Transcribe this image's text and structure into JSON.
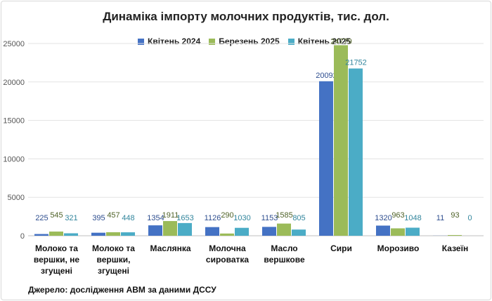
{
  "chart_data": {
    "type": "bar",
    "title": "Динаміка імпорту молочних продуктів, тис. дол.",
    "categories": [
      [
        "Молоко та",
        "вершки, не",
        "згущені"
      ],
      [
        "Молоко та",
        "вершки,",
        "згущені"
      ],
      [
        "Маслянка"
      ],
      [
        "Молочна",
        "сироватка"
      ],
      [
        "Масло",
        "вершкове"
      ],
      [
        "Сири"
      ],
      [
        "Морозиво"
      ],
      [
        "Казеїн"
      ]
    ],
    "series": [
      {
        "name": "Квітень 2024",
        "color": "#4472c4",
        "label_color": "#2e4e8f",
        "values": [
          225,
          395,
          1354,
          1126,
          1153,
          20092,
          1320,
          11
        ]
      },
      {
        "name": "Березень 2025",
        "color": "#9bbb59",
        "label_color": "#4f6228",
        "values": [
          545,
          457,
          1911,
          290,
          1585,
          24779,
          963,
          93
        ]
      },
      {
        "name": "Квітень 2025",
        "color": "#4bacc6",
        "label_color": "#31859c",
        "values": [
          321,
          448,
          1653,
          1030,
          805,
          21752,
          1048,
          0
        ]
      }
    ],
    "ylim": [
      0,
      25000
    ],
    "yticks": [
      0,
      5000,
      10000,
      15000,
      20000,
      25000
    ],
    "grid": true,
    "legend": "top-center",
    "source": "Джерело: дослідження АВМ за даними ДССУ"
  }
}
